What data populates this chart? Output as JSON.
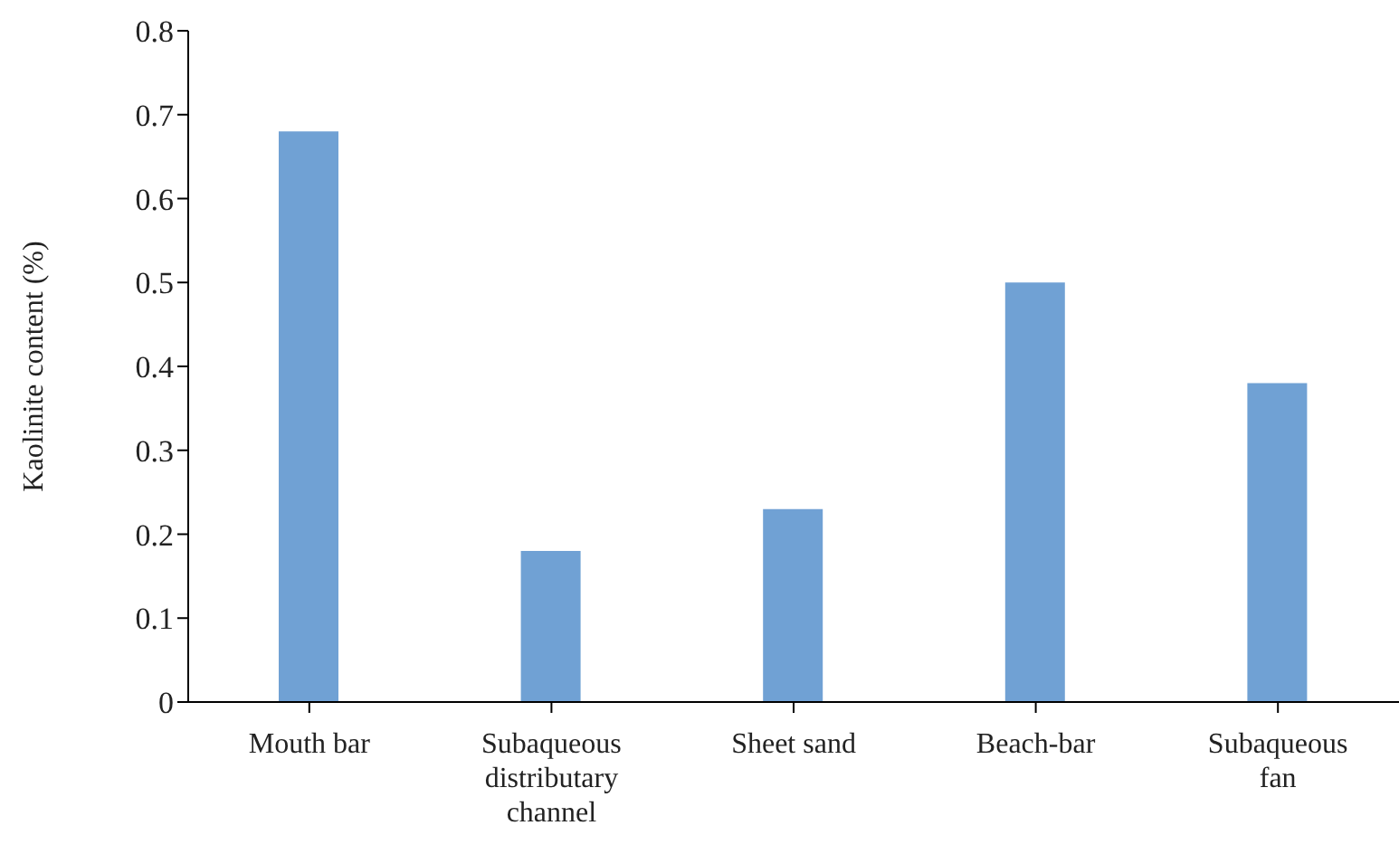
{
  "chart_data": {
    "type": "bar",
    "ylabel": "Kaolinite content (%)",
    "categories": [
      "Mouth bar",
      "Subaqueous distributary channel",
      "Sheet sand",
      "Beach-bar",
      "Subaqueous fan"
    ],
    "values": [
      0.68,
      0.18,
      0.23,
      0.5,
      0.38
    ],
    "color": "#70a1d4",
    "ylim": [
      0,
      0.8
    ],
    "yticks": [
      0,
      0.1,
      0.2,
      0.3,
      0.4,
      0.5,
      0.6,
      0.7,
      0.8
    ],
    "grid": false,
    "legend": false
  }
}
